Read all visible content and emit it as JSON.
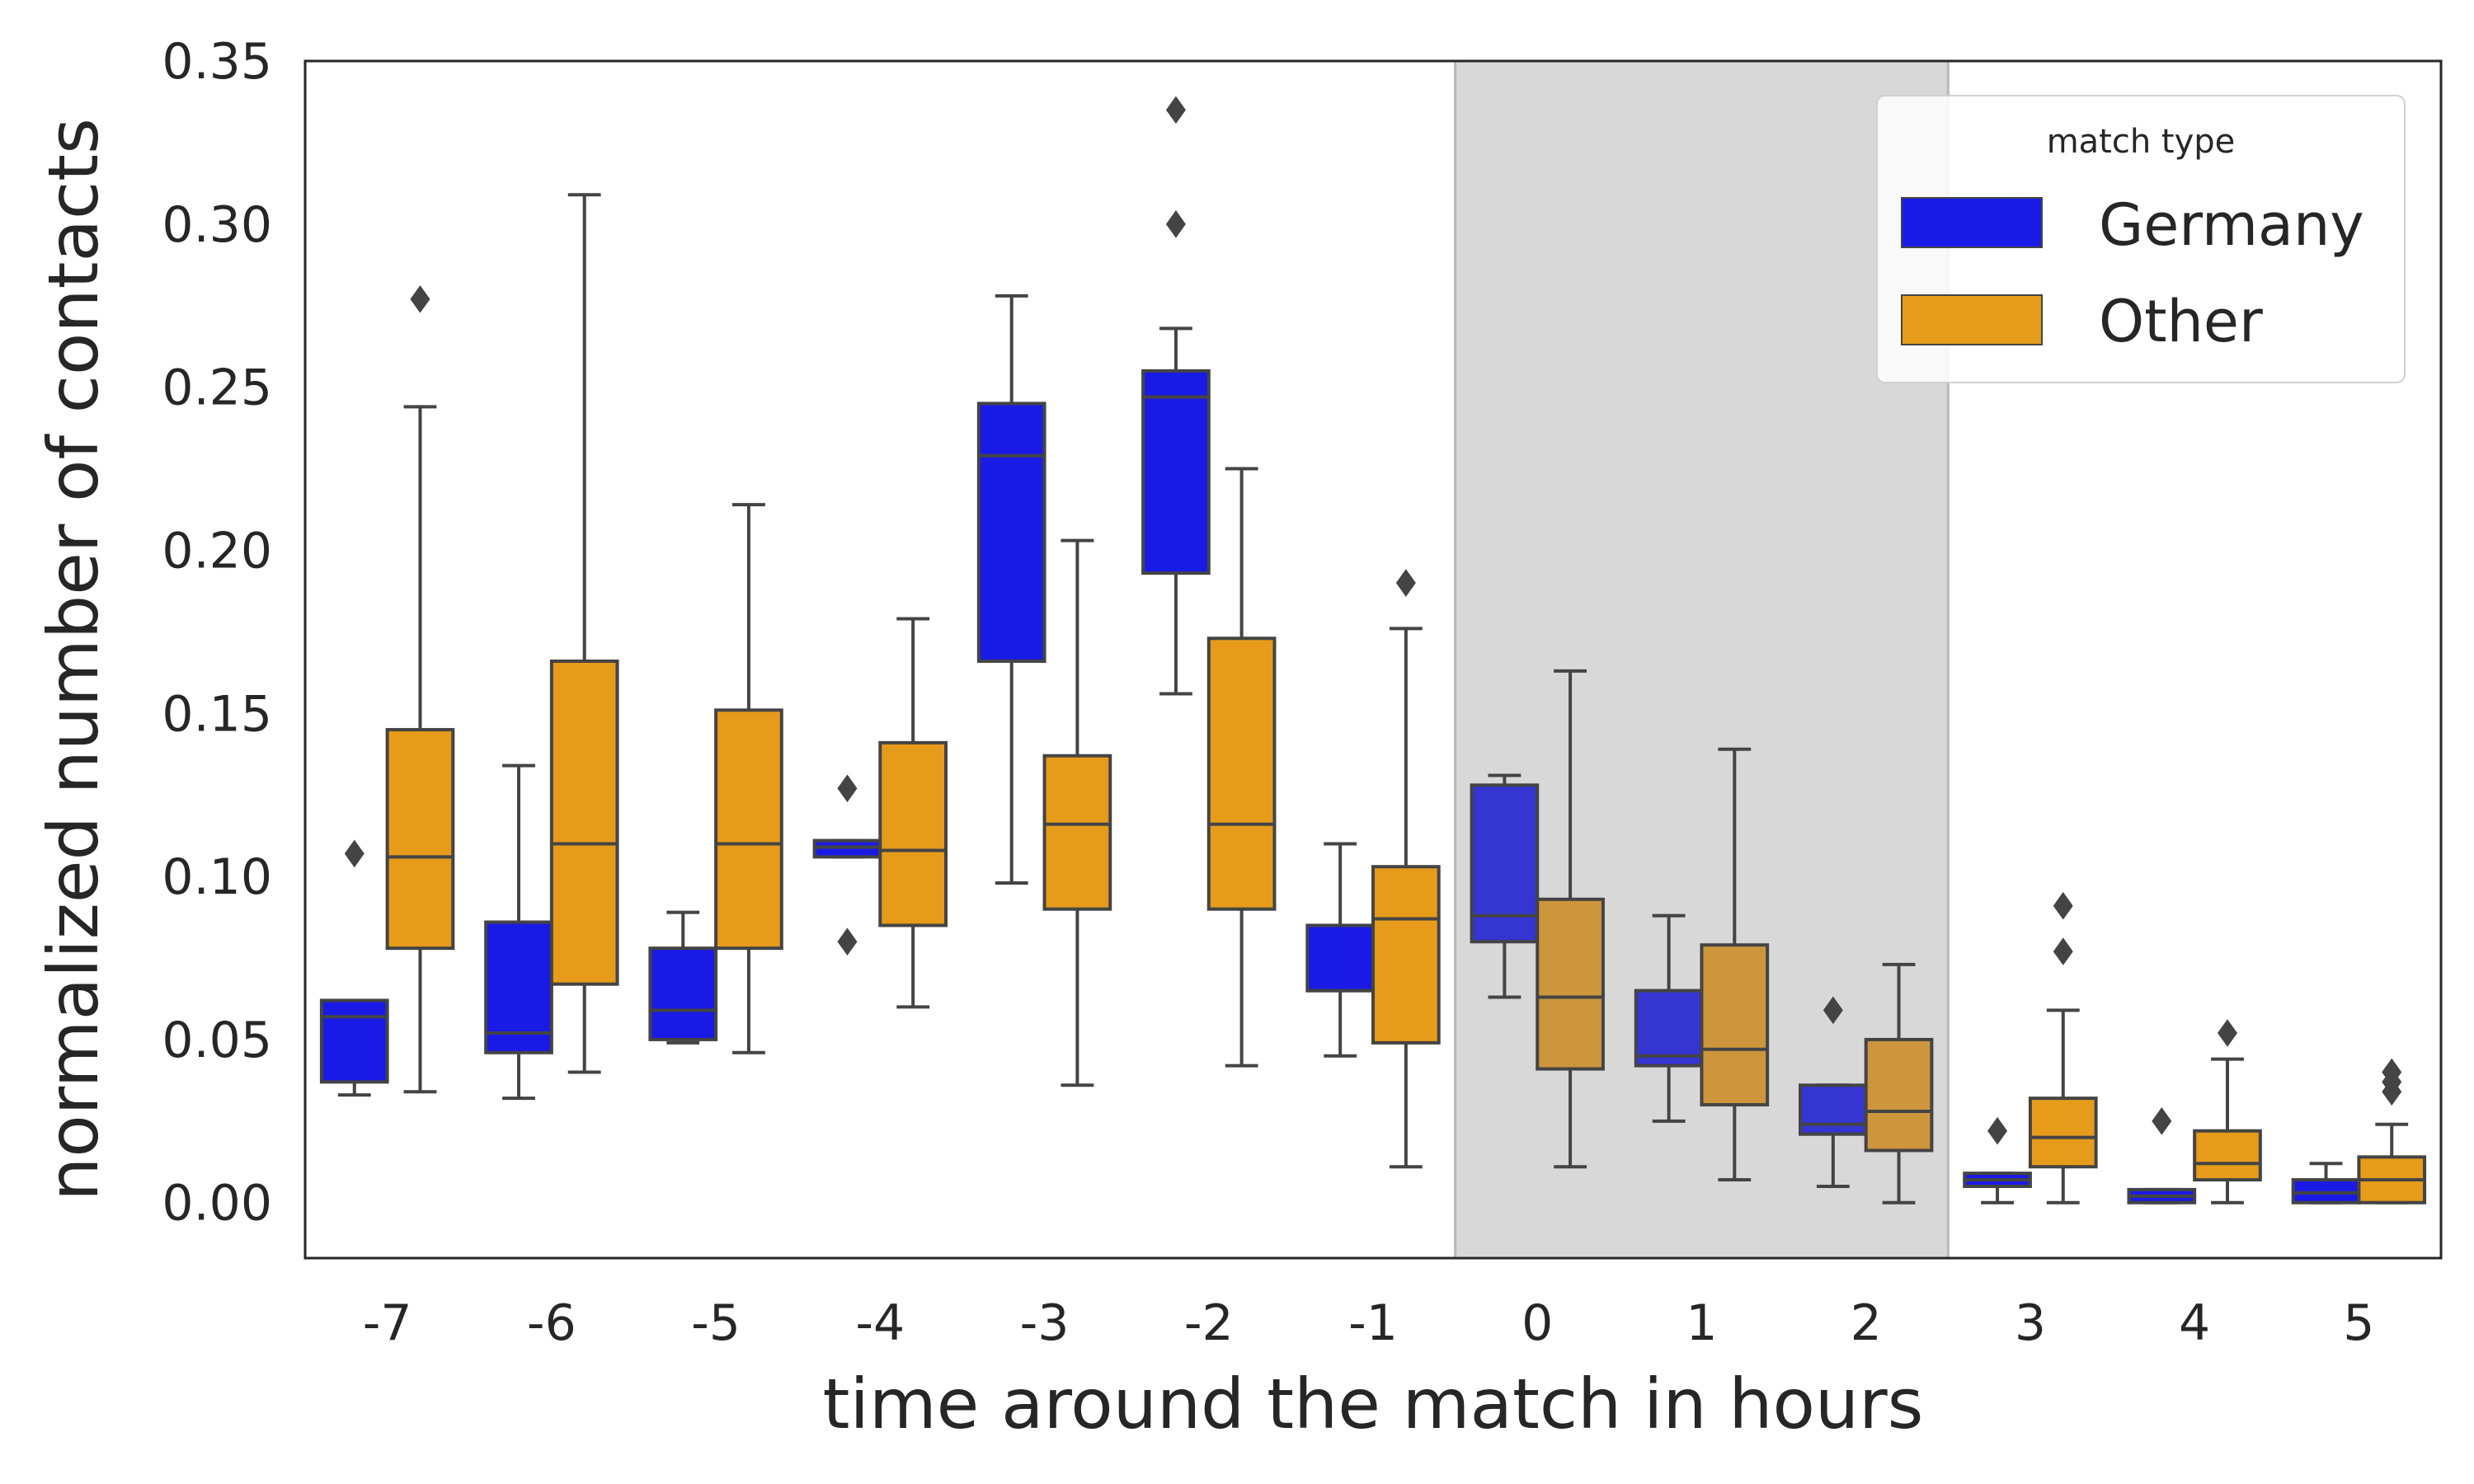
{
  "chart_data": {
    "type": "box",
    "xlabel": "time around the match in hours",
    "ylabel": "normalized number of contacts",
    "ylim": [
      -0.017,
      0.35
    ],
    "yticks": [
      "0.00",
      "0.05",
      "0.10",
      "0.15",
      "0.20",
      "0.25",
      "0.30",
      "0.35"
    ],
    "ytick_values": [
      0,
      0.05,
      0.1,
      0.15,
      0.2,
      0.25,
      0.3,
      0.35
    ],
    "categories": [
      "-7",
      "-6",
      "-5",
      "-4",
      "-3",
      "-2",
      "-1",
      "0",
      "1",
      "2",
      "3",
      "4",
      "5"
    ],
    "shaded_region": {
      "from": "0",
      "to": "2",
      "color": "#d8d8d8"
    },
    "grid": false,
    "legend": {
      "title": "match type",
      "position": "top-right",
      "entries": [
        {
          "label": "Germany",
          "color": "#1a1ae6"
        },
        {
          "label": "Other",
          "color": "#e69b1a"
        }
      ]
    },
    "series": [
      {
        "name": "Germany",
        "color": "#1a1ae6",
        "shaded_color": "#3535d2",
        "boxes": [
          {
            "x": "-7",
            "whislo": 0.033,
            "q1": 0.037,
            "med": 0.057,
            "q3": 0.062,
            "whishi": 0.062,
            "fliers": [
              0.107
            ]
          },
          {
            "x": "-6",
            "whislo": 0.032,
            "q1": 0.046,
            "med": 0.052,
            "q3": 0.086,
            "whishi": 0.134,
            "fliers": []
          },
          {
            "x": "-5",
            "whislo": 0.049,
            "q1": 0.05,
            "med": 0.059,
            "q3": 0.078,
            "whishi": 0.089,
            "fliers": []
          },
          {
            "x": "-4",
            "whislo": 0.106,
            "q1": 0.106,
            "med": 0.109,
            "q3": 0.111,
            "whishi": 0.111,
            "fliers": [
              0.127,
              0.08
            ]
          },
          {
            "x": "-3",
            "whislo": 0.098,
            "q1": 0.166,
            "med": 0.229,
            "q3": 0.245,
            "whishi": 0.278,
            "fliers": []
          },
          {
            "x": "-2",
            "whislo": 0.156,
            "q1": 0.193,
            "med": 0.247,
            "q3": 0.255,
            "whishi": 0.268,
            "fliers": [
              0.335,
              0.3
            ]
          },
          {
            "x": "-1",
            "whislo": 0.045,
            "q1": 0.065,
            "med": 0.065,
            "q3": 0.085,
            "whishi": 0.11,
            "fliers": []
          },
          {
            "x": "0",
            "whislo": 0.063,
            "q1": 0.08,
            "med": 0.088,
            "q3": 0.128,
            "whishi": 0.131,
            "fliers": []
          },
          {
            "x": "1",
            "whislo": 0.025,
            "q1": 0.042,
            "med": 0.045,
            "q3": 0.065,
            "whishi": 0.088,
            "fliers": []
          },
          {
            "x": "2",
            "whislo": 0.005,
            "q1": 0.021,
            "med": 0.024,
            "q3": 0.036,
            "whishi": 0.036,
            "fliers": [
              0.059
            ]
          },
          {
            "x": "3",
            "whislo": 0.0,
            "q1": 0.005,
            "med": 0.007,
            "q3": 0.009,
            "whishi": 0.009,
            "fliers": [
              0.022
            ]
          },
          {
            "x": "4",
            "whislo": 0.0,
            "q1": 0.0,
            "med": 0.002,
            "q3": 0.004,
            "whishi": 0.004,
            "fliers": [
              0.025
            ]
          },
          {
            "x": "5",
            "whislo": 0.0,
            "q1": 0.0,
            "med": 0.003,
            "q3": 0.007,
            "whishi": 0.012,
            "fliers": []
          }
        ]
      },
      {
        "name": "Other",
        "color": "#e69b1a",
        "shaded_color": "#cd963c",
        "boxes": [
          {
            "x": "-7",
            "whislo": 0.034,
            "q1": 0.078,
            "med": 0.106,
            "q3": 0.145,
            "whishi": 0.244,
            "fliers": [
              0.277
            ]
          },
          {
            "x": "-6",
            "whislo": 0.04,
            "q1": 0.067,
            "med": 0.11,
            "q3": 0.166,
            "whishi": 0.309,
            "fliers": []
          },
          {
            "x": "-5",
            "whislo": 0.046,
            "q1": 0.078,
            "med": 0.11,
            "q3": 0.151,
            "whishi": 0.214,
            "fliers": []
          },
          {
            "x": "-4",
            "whislo": 0.06,
            "q1": 0.085,
            "med": 0.108,
            "q3": 0.141,
            "whishi": 0.179,
            "fliers": []
          },
          {
            "x": "-3",
            "whislo": 0.036,
            "q1": 0.09,
            "med": 0.116,
            "q3": 0.137,
            "whishi": 0.203,
            "fliers": []
          },
          {
            "x": "-2",
            "whislo": 0.042,
            "q1": 0.09,
            "med": 0.116,
            "q3": 0.173,
            "whishi": 0.225,
            "fliers": []
          },
          {
            "x": "-1",
            "whislo": 0.011,
            "q1": 0.049,
            "med": 0.087,
            "q3": 0.103,
            "whishi": 0.176,
            "fliers": [
              0.19
            ]
          },
          {
            "x": "0",
            "whislo": 0.011,
            "q1": 0.041,
            "med": 0.063,
            "q3": 0.093,
            "whishi": 0.163,
            "fliers": []
          },
          {
            "x": "1",
            "whislo": 0.007,
            "q1": 0.03,
            "med": 0.047,
            "q3": 0.079,
            "whishi": 0.139,
            "fliers": []
          },
          {
            "x": "2",
            "whislo": 0.0,
            "q1": 0.016,
            "med": 0.028,
            "q3": 0.05,
            "whishi": 0.073,
            "fliers": []
          },
          {
            "x": "3",
            "whislo": 0.0,
            "q1": 0.011,
            "med": 0.02,
            "q3": 0.032,
            "whishi": 0.059,
            "fliers": [
              0.091,
              0.077
            ]
          },
          {
            "x": "4",
            "whislo": 0.0,
            "q1": 0.007,
            "med": 0.012,
            "q3": 0.022,
            "whishi": 0.044,
            "fliers": [
              0.052
            ]
          },
          {
            "x": "5",
            "whislo": 0.0,
            "q1": 0.0,
            "med": 0.007,
            "q3": 0.014,
            "whishi": 0.024,
            "fliers": [
              0.04,
              0.037,
              0.034
            ]
          }
        ]
      }
    ]
  }
}
